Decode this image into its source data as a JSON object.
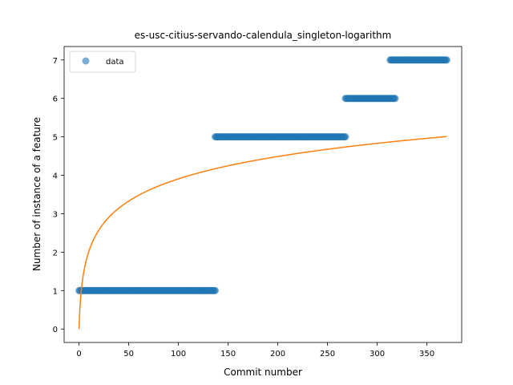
{
  "chart_data": {
    "type": "scatter",
    "title": "es-usc-citius-servando-calendula_singleton-logarithm",
    "xlabel": "Commit number",
    "ylabel": "Number of instance of a feature",
    "xlim": [
      -15,
      385
    ],
    "ylim": [
      -0.35,
      7.35
    ],
    "xticks": [
      0,
      50,
      100,
      150,
      200,
      250,
      300,
      350
    ],
    "yticks": [
      0,
      1,
      2,
      3,
      4,
      5,
      6,
      7
    ],
    "grid": false,
    "legend": {
      "placement": "top-left",
      "entries": [
        "data"
      ]
    },
    "series": [
      {
        "name": "data",
        "kind": "points",
        "color": "#1f77b4",
        "segments": [
          {
            "x_start": 0,
            "x_end": 137,
            "y": 1
          },
          {
            "x_start": 137,
            "x_end": 268,
            "y": 5
          },
          {
            "x_start": 268,
            "x_end": 318,
            "y": 6
          },
          {
            "x_start": 313,
            "x_end": 370,
            "y": 7
          }
        ]
      },
      {
        "kind": "line",
        "color": "#ff7f0e",
        "model": "y = 0.8465 * ln(x + 1)",
        "coef": 0.8465,
        "x_range": [
          0,
          370
        ]
      }
    ]
  }
}
